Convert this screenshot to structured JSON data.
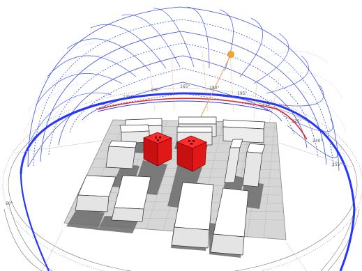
{
  "viewport": {
    "background": "#ffffff"
  },
  "colors": {
    "sunpath_grid": "#3b4fe0",
    "sunpath_grid_light": "#8a96f0",
    "horizon_blue": "#2636ff",
    "horizon_red": "#ee2222",
    "sun": "#f5a623",
    "sun_ray": "#e3a050",
    "target_building": "#e01818",
    "target_building_top": "#ff2a2a",
    "context_building": "#f3f3f3",
    "context_outline": "#333333",
    "ground_grid": "#9a9a9a",
    "shadow": "#6b6b6b",
    "azimuth_ring": "#666666"
  },
  "sun": {
    "icon": "sun-icon"
  },
  "azimuth_labels": [
    "135°",
    "150°",
    "165°",
    "180°",
    "195°",
    "210°",
    "225°",
    "240°",
    "255°",
    "60°"
  ]
}
